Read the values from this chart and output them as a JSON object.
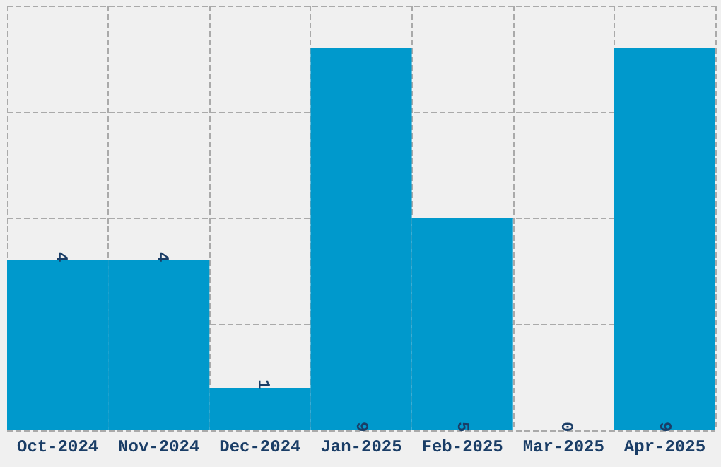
{
  "chart_data": {
    "type": "bar",
    "categories": [
      "Oct-2024",
      "Nov-2024",
      "Dec-2024",
      "Jan-2025",
      "Feb-2025",
      "Mar-2025",
      "Apr-2025"
    ],
    "values": [
      4,
      4,
      1,
      9,
      5,
      0,
      9
    ],
    "color": "#0099cc",
    "data_labels": true,
    "grid": true,
    "ylim": [
      0,
      10
    ],
    "yticks": [
      {
        "value": 0,
        "label": null
      },
      {
        "value": 2.5,
        "label": null
      },
      {
        "value": 5,
        "label": null
      },
      {
        "value": 7.5,
        "label": null
      },
      {
        "value": 10,
        "label": null
      }
    ],
    "tick_labels": "x"
  }
}
